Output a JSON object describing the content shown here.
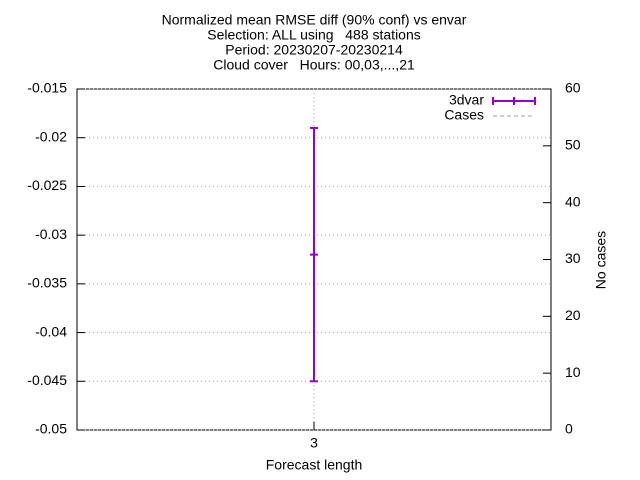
{
  "chart_data": {
    "type": "errorbar",
    "title": [
      "Normalized mean RMSE diff (90% conf) vs envar",
      "Selection: ALL using   488 stations",
      "Period: 20230207-20230214",
      "Cloud cover   Hours: 00,03,...,21"
    ],
    "xlabel": "Forecast length",
    "y2label": "No cases",
    "categories": [
      "3"
    ],
    "series": [
      {
        "name": "3dvar",
        "color": "#9400d3",
        "values": [
          -0.032
        ],
        "errors": [
          0.013
        ]
      },
      {
        "name": "Cases",
        "color": "#a0a0a0",
        "axis": "y2",
        "values": [
          null
        ]
      }
    ],
    "ylim": [
      -0.05,
      -0.015
    ],
    "yticks": [
      -0.05,
      -0.045,
      -0.04,
      -0.035,
      -0.03,
      -0.025,
      -0.02,
      -0.015
    ],
    "y2lim": [
      0,
      60
    ],
    "y2ticks": [
      0,
      10,
      20,
      30,
      40,
      50,
      60
    ],
    "grid": true,
    "legend": "top-right"
  }
}
